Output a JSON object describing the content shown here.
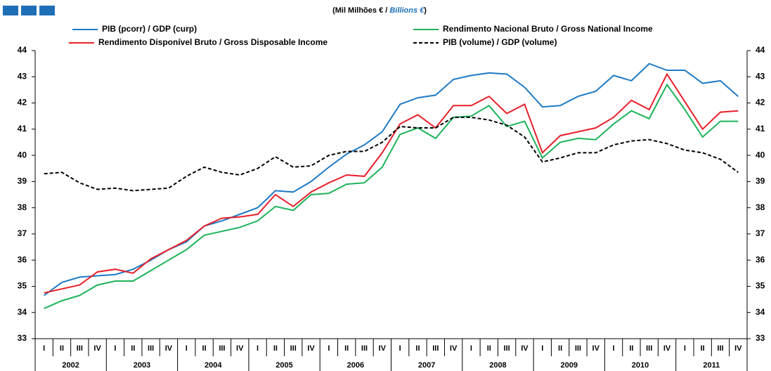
{
  "chart_data": {
    "type": "line",
    "title_pt": "(Mil Milhões € / ",
    "title_en": "Billions €",
    "title_close": ")",
    "categories": [
      "I",
      "II",
      "III",
      "IV",
      "I",
      "II",
      "III",
      "IV",
      "I",
      "II",
      "III",
      "IV",
      "I",
      "II",
      "III",
      "IV",
      "I",
      "II",
      "III",
      "IV",
      "I",
      "II",
      "III",
      "IV",
      "I",
      "II",
      "III",
      "IV",
      "I",
      "II",
      "III",
      "IV",
      "I",
      "II",
      "III",
      "IV",
      "I",
      "II",
      "III",
      "IV"
    ],
    "years": [
      "2002",
      "2003",
      "2004",
      "2005",
      "2006",
      "2007",
      "2008",
      "2009",
      "2010",
      "2011"
    ],
    "ylim": [
      33,
      44
    ],
    "yticks": [
      33,
      34,
      35,
      36,
      37,
      38,
      39,
      40,
      41,
      42,
      43,
      44
    ],
    "y2lim": [
      33,
      44
    ],
    "y2ticks": [
      33,
      34,
      35,
      36,
      37,
      38,
      39,
      40,
      41,
      42,
      43,
      44
    ],
    "series": [
      {
        "name": "PIB (pcorr) / GDP (curp)",
        "color": "#1f7ac4",
        "style": "solid",
        "values": [
          34.65,
          35.15,
          35.35,
          35.4,
          35.45,
          35.65,
          36.0,
          36.4,
          36.7,
          37.3,
          37.5,
          37.75,
          38.0,
          38.65,
          38.6,
          39.0,
          39.55,
          40.05,
          40.4,
          40.9,
          41.95,
          42.2,
          42.3,
          42.9,
          43.05,
          43.15,
          43.1,
          42.6,
          41.85,
          41.9,
          42.25,
          42.45,
          43.05,
          42.85,
          43.5,
          43.25,
          43.25,
          42.75,
          42.85,
          42.25
        ]
      },
      {
        "name": "Rendimento Nacional Bruto / Gross National Income",
        "color": "#1db35a",
        "style": "solid",
        "values": [
          34.15,
          34.45,
          34.65,
          35.05,
          35.2,
          35.2,
          35.6,
          36.0,
          36.4,
          36.95,
          37.1,
          37.25,
          37.5,
          38.05,
          37.9,
          38.5,
          38.55,
          38.9,
          38.95,
          39.55,
          40.8,
          41.05,
          40.65,
          41.45,
          41.5,
          41.9,
          41.1,
          41.3,
          39.9,
          40.5,
          40.65,
          40.6,
          41.2,
          41.7,
          41.4,
          42.7,
          41.75,
          40.7,
          41.3,
          41.3
        ]
      },
      {
        "name": "Rendimento Disponível Bruto / Gross Disposable Income",
        "color": "#e8202a",
        "style": "solid",
        "values": [
          34.75,
          34.9,
          35.05,
          35.55,
          35.65,
          35.5,
          36.05,
          36.4,
          36.75,
          37.3,
          37.6,
          37.65,
          37.75,
          38.5,
          38.05,
          38.6,
          38.95,
          39.25,
          39.2,
          40.1,
          41.2,
          41.55,
          41.05,
          41.9,
          41.9,
          42.25,
          41.6,
          41.95,
          40.1,
          40.75,
          40.9,
          41.05,
          41.45,
          42.1,
          41.75,
          43.1,
          42.05,
          41.0,
          41.65,
          41.7
        ]
      },
      {
        "name": "PIB (volume) / GDP (volume)",
        "color": "#000000",
        "style": "dashed",
        "values": [
          39.3,
          39.35,
          38.95,
          38.7,
          38.75,
          38.65,
          38.7,
          38.75,
          39.2,
          39.55,
          39.35,
          39.25,
          39.5,
          39.95,
          39.55,
          39.6,
          40.0,
          40.15,
          40.15,
          40.5,
          41.1,
          41.05,
          41.05,
          41.45,
          41.45,
          41.35,
          41.15,
          40.7,
          39.75,
          39.9,
          40.1,
          40.1,
          40.4,
          40.55,
          40.6,
          40.45,
          40.2,
          40.1,
          39.85,
          39.35
        ]
      }
    ]
  }
}
